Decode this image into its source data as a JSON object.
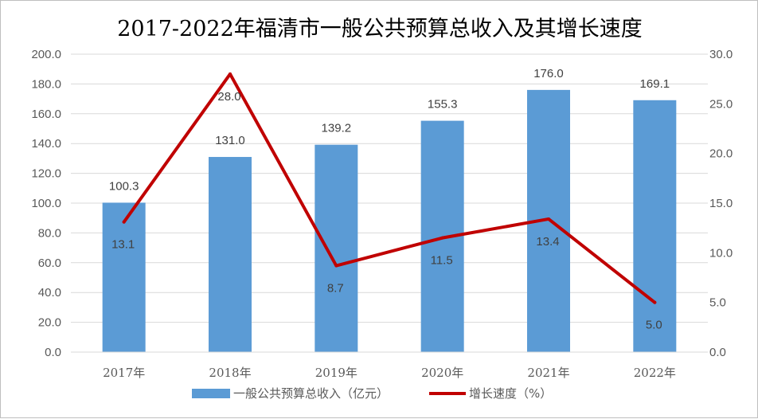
{
  "chart_data": {
    "type": "bar",
    "title": "2017-2022年福清市一般公共预算总收入及其增长速度",
    "categories": [
      "2017年",
      "2018年",
      "2019年",
      "2020年",
      "2021年",
      "2022年"
    ],
    "series": [
      {
        "name": "一般公共预算总收入（亿元）",
        "type": "bar",
        "axis": "left",
        "color": "#5b9bd5",
        "values": [
          100.3,
          131.0,
          139.2,
          155.3,
          176.0,
          169.1
        ],
        "labels": [
          "100.3",
          "131.0",
          "139.2",
          "155.3",
          "176.0",
          "169.1"
        ]
      },
      {
        "name": "增长速度（%）",
        "type": "line",
        "axis": "right",
        "color": "#c00000",
        "values": [
          13.1,
          28.0,
          8.7,
          11.5,
          13.4,
          5.0
        ],
        "labels": [
          "13.1",
          "28.0",
          "8.7",
          "11.5",
          "13.4",
          "5.0"
        ]
      }
    ],
    "y_left": {
      "range": [
        0,
        200
      ],
      "ticks": [
        "0.0",
        "20.0",
        "40.0",
        "60.0",
        "80.0",
        "100.0",
        "120.0",
        "140.0",
        "160.0",
        "180.0",
        "200.0"
      ]
    },
    "y_right": {
      "range": [
        0,
        30
      ],
      "ticks": [
        "0.0",
        "5.0",
        "10.0",
        "15.0",
        "20.0",
        "25.0",
        "30.0"
      ]
    },
    "grid": true,
    "legend_position": "bottom"
  }
}
